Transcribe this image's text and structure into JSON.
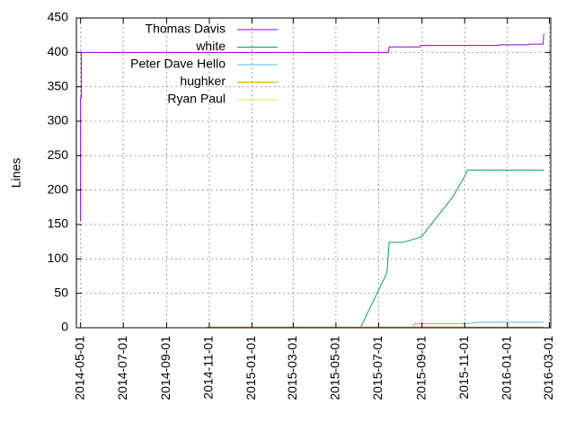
{
  "chart_data": {
    "type": "line",
    "title": "",
    "xlabel": "",
    "ylabel": "Lines",
    "ylim": [
      0,
      450
    ],
    "xlim": [
      "2014-04-25",
      "2016-03-03"
    ],
    "grid": true,
    "legend_position": "top-left",
    "y_ticks": [
      "0",
      "50",
      "100",
      "150",
      "200",
      "250",
      "300",
      "350",
      "400",
      "450"
    ],
    "x_ticks": [
      "2014-05-01",
      "2014-07-01",
      "2014-09-01",
      "2014-11-01",
      "2015-01-01",
      "2015-03-01",
      "2015-05-01",
      "2015-07-01",
      "2015-09-01",
      "2015-11-01",
      "2016-01-01",
      "2016-03-01"
    ],
    "series": [
      {
        "name": "Thomas Davis",
        "color": "#9400d3",
        "points": [
          [
            "2014-05-01",
            155
          ],
          [
            "2014-05-01",
            335
          ],
          [
            "2014-05-02",
            335
          ],
          [
            "2014-05-02",
            400
          ],
          [
            "2015-07-15",
            400
          ],
          [
            "2015-07-16",
            408
          ],
          [
            "2015-08-29",
            408
          ],
          [
            "2015-08-30",
            410
          ],
          [
            "2015-12-20",
            410
          ],
          [
            "2015-12-21",
            411
          ],
          [
            "2016-02-01",
            411
          ],
          [
            "2016-02-02",
            412
          ],
          [
            "2016-02-21",
            412
          ],
          [
            "2016-02-22",
            427
          ]
        ]
      },
      {
        "name": "white",
        "color": "#009e73",
        "points": [
          [
            "2014-05-01",
            0
          ],
          [
            "2015-06-05",
            0
          ],
          [
            "2015-07-13",
            80
          ],
          [
            "2015-07-16",
            124
          ],
          [
            "2015-08-05",
            124
          ],
          [
            "2015-08-31",
            132
          ],
          [
            "2015-10-15",
            190
          ],
          [
            "2015-11-01",
            220
          ],
          [
            "2015-11-05",
            229
          ],
          [
            "2016-02-22",
            229
          ]
        ]
      },
      {
        "name": "Peter Dave Hello",
        "color": "#56b4e9",
        "points": [
          [
            "2014-05-01",
            0
          ],
          [
            "2015-08-20",
            0
          ],
          [
            "2015-08-21",
            6
          ],
          [
            "2015-11-05",
            6
          ],
          [
            "2015-11-20",
            8
          ],
          [
            "2016-02-22",
            8
          ]
        ]
      },
      {
        "name": "hughker",
        "color": "#e69f00",
        "points": [
          [
            "2014-05-01",
            0
          ],
          [
            "2014-10-28",
            0
          ],
          [
            "2014-10-29",
            1
          ],
          [
            "2016-02-22",
            1
          ]
        ]
      },
      {
        "name": "Ryan Paul",
        "color": "#f0e442",
        "points": [
          [
            "2014-05-01",
            0
          ],
          [
            "2016-02-22",
            0
          ]
        ]
      }
    ]
  }
}
